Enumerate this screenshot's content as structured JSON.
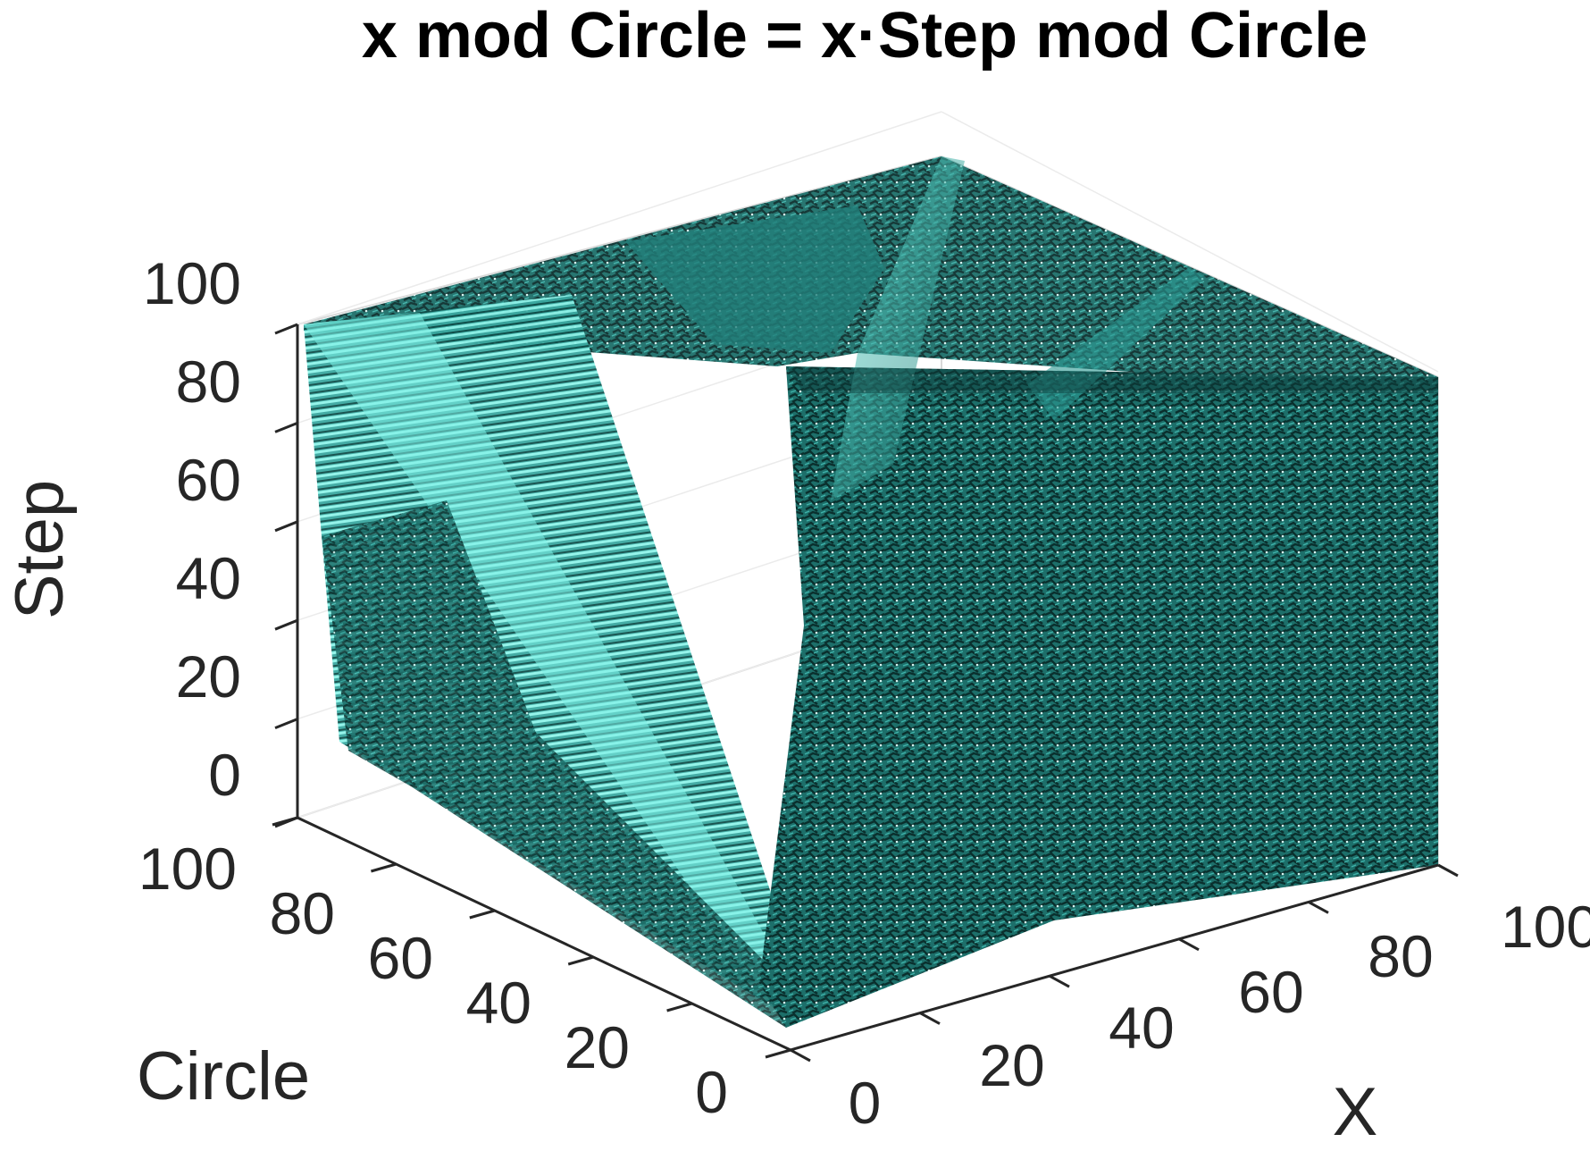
{
  "chart_data": {
    "type": "isosurface-3d",
    "title": "x mod Circle = x·Step mod Circle",
    "surface_color": "#1a8a84",
    "surface_dark": "#0c3f3c",
    "surface_light": "#5fe6da",
    "axes": {
      "x": {
        "label": "X",
        "range": [
          0,
          100
        ],
        "ticks": [
          "0",
          "20",
          "40",
          "60",
          "80",
          "100"
        ]
      },
      "circle": {
        "label": "Circle",
        "range": [
          0,
          100
        ],
        "ticks": [
          "0",
          "20",
          "40",
          "60",
          "80",
          "100"
        ]
      },
      "step": {
        "label": "Step",
        "range": [
          0,
          100
        ],
        "ticks": [
          "0",
          "20",
          "40",
          "60",
          "80",
          "100"
        ]
      }
    },
    "grid": true,
    "box": true
  }
}
